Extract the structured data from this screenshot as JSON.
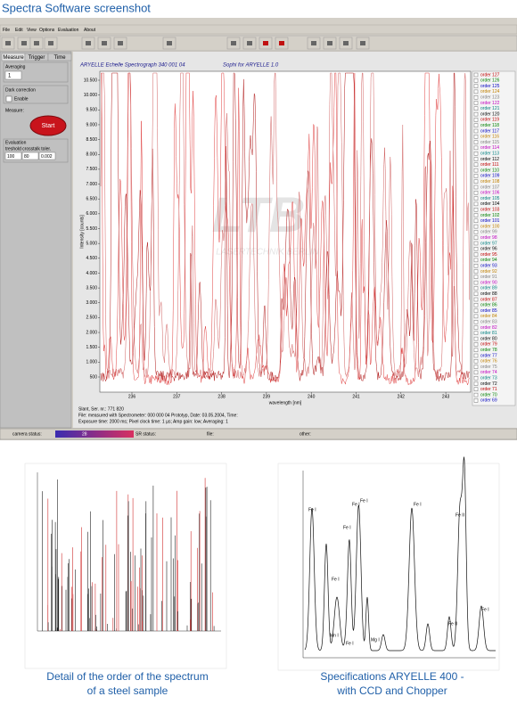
{
  "title": "Spectra Software screenshot",
  "menu": [
    "File",
    "Edit",
    "View",
    "Options",
    "Evaluation",
    "About"
  ],
  "tabs": [
    "Measure",
    "Trigger",
    "Time"
  ],
  "panel": {
    "averaging_label": "Averaging",
    "averaging_value": "1",
    "dark_label": "Dark correction",
    "enable": "Enable",
    "measure_label": "Measure:",
    "start": "Start",
    "evaluation_label": "Evaluation",
    "eval_headers": "treshold crosstalk toler.",
    "eval_values": [
      "100",
      "80",
      "0.002"
    ]
  },
  "plot": {
    "title": "ARYELLE Echelle Spectrograph 340 001 04",
    "subtitle": "Sophi for ARYELLE 1.0",
    "watermark": "LTB",
    "watermark_sub": "LASERTECHNIK BERLIN",
    "y_label": "Intensity [counts]",
    "x_label": "wavelength [nm]",
    "y_ticks": [
      "500",
      "1.000",
      "1.500",
      "2.000",
      "2.500",
      "3.000",
      "3.500",
      "4.000",
      "4.500",
      "5.000",
      "5.500",
      "6.000",
      "6.500",
      "7.000",
      "7.500",
      "8.000",
      "8.500",
      "9.000",
      "9.500",
      "10.000",
      "10.500"
    ],
    "x_ticks": [
      "236",
      "237",
      "238",
      "239",
      "240",
      "241",
      "242",
      "243"
    ]
  },
  "legend": [
    "order 127",
    "order 126",
    "order 125",
    "order 124",
    "order 123",
    "order 122",
    "order 121",
    "order 120",
    "order 119",
    "order 118",
    "order 117",
    "order 116",
    "order 115",
    "order 114",
    "order 113",
    "order 112",
    "order 111",
    "order 110",
    "order 109",
    "order 108",
    "order 107",
    "order 106",
    "order 105",
    "order 104",
    "order 103",
    "order 102",
    "order 101",
    "order 100",
    "order 99",
    "order 98",
    "order 97",
    "order 96",
    "order 95",
    "order 94",
    "order 93",
    "order 92",
    "order 91",
    "order 90",
    "order 89",
    "order 88",
    "order 87",
    "order 86",
    "order 85",
    "order 84",
    "order 83",
    "order 82",
    "order 81",
    "order 80",
    "order 79",
    "order 78",
    "order 77",
    "order 76",
    "order 75",
    "order 74",
    "order 73",
    "order 72",
    "order 71",
    "order 70",
    "order 69"
  ],
  "info": [
    "Slant, Ser. nr.: 771 820",
    "File:  measured with Spectrometer: 000 000 04  Prototyp, Date: 03.05.2004, Time:",
    "Exposure time: 2000 ms; Pixel clock time: 1 µs; Amp gain: low; Averaging: 1"
  ],
  "status": {
    "camera": "camera status:",
    "camera_value": "28",
    "sr": "SR status:",
    "file": "file:",
    "other": "other:"
  },
  "figures": [
    {
      "caption": [
        "Detail of the order of the spectrum",
        "of a steel sample"
      ]
    },
    {
      "caption": [
        "Specifications ARYELLE 400 -",
        "with CCD and Chopper"
      ],
      "peak_labels": [
        "Fe I",
        "Fe I",
        "Fe I",
        "Fe I",
        "Fe I",
        "Fe I",
        "Mn I",
        "Fe I",
        "Mg I",
        "Fe II",
        "Fe II",
        "Fe I"
      ]
    }
  ]
}
